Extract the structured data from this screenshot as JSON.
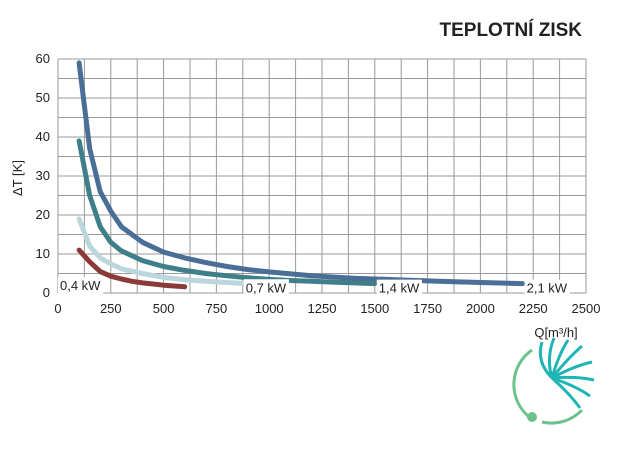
{
  "chart_data": {
    "type": "line",
    "title": "TEPLOTNÍ ZISK",
    "xlabel": "Q[m³/h]",
    "ylabel": "ΔT [K]",
    "xlim": [
      0,
      2500
    ],
    "ylim": [
      0,
      60
    ],
    "xticks": [
      0,
      250,
      500,
      750,
      1000,
      1250,
      1500,
      1750,
      2000,
      2250,
      2500
    ],
    "yticks": [
      0,
      10,
      20,
      30,
      40,
      50,
      60
    ],
    "grid": true,
    "series": [
      {
        "name": "0,4 kW",
        "color": "#8b3a3a",
        "x": [
          100,
          150,
          200,
          250,
          300,
          350,
          400,
          450,
          500,
          550,
          600
        ],
        "y": [
          11,
          8,
          5.5,
          4.3,
          3.6,
          3.0,
          2.6,
          2.3,
          2.0,
          1.8,
          1.6
        ]
      },
      {
        "name": "0,7 kW",
        "color": "#bcd6de",
        "x": [
          100,
          150,
          200,
          250,
          300,
          400,
          500,
          600,
          700,
          800,
          870
        ],
        "y": [
          19,
          12,
          9,
          7.5,
          6.2,
          5.0,
          4.0,
          3.4,
          3.0,
          2.7,
          2.5
        ]
      },
      {
        "name": "1,4 kW",
        "color": "#3e7f89",
        "x": [
          100,
          150,
          200,
          250,
          300,
          400,
          500,
          600,
          700,
          800,
          900,
          1000,
          1100,
          1200,
          1300,
          1400,
          1500
        ],
        "y": [
          39,
          25,
          17,
          13,
          10.8,
          8.3,
          6.8,
          5.8,
          5.0,
          4.4,
          3.9,
          3.5,
          3.2,
          3.0,
          2.8,
          2.6,
          2.4
        ]
      },
      {
        "name": "2,1 kW",
        "color": "#4a6e96",
        "x": [
          100,
          150,
          200,
          250,
          300,
          400,
          500,
          600,
          700,
          800,
          900,
          1000,
          1200,
          1400,
          1600,
          1800,
          2000,
          2200
        ],
        "y": [
          59,
          37,
          26,
          21,
          17,
          13,
          10.5,
          9.0,
          7.8,
          6.8,
          6.0,
          5.4,
          4.4,
          3.8,
          3.4,
          3.0,
          2.7,
          2.4
        ]
      }
    ]
  }
}
